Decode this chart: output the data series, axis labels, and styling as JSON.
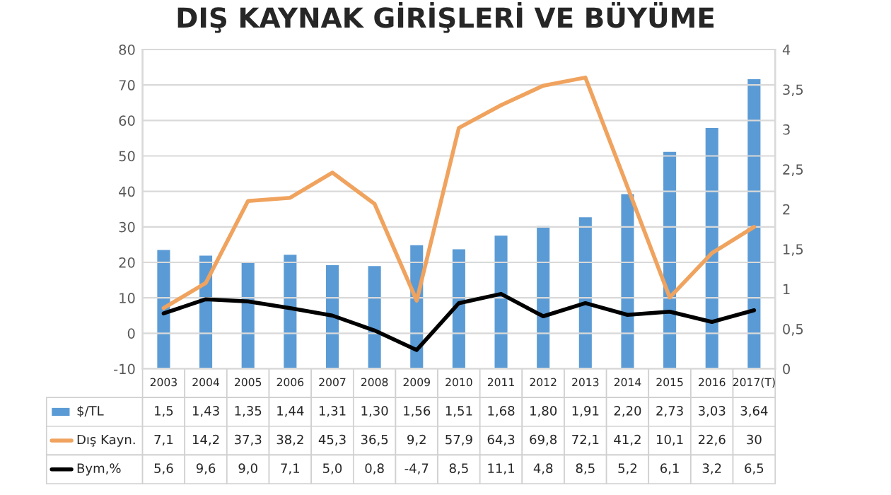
{
  "chart_data": {
    "type": "bar",
    "title": "DIŞ KAYNAK GİRİŞLERİ VE BÜYÜME",
    "categories": [
      "2003",
      "2004",
      "2005",
      "2006",
      "2007",
      "2008",
      "2009",
      "2010",
      "2011",
      "2012",
      "2013",
      "2014",
      "2015",
      "2016",
      "2017(T)"
    ],
    "series": [
      {
        "name": "$/TL",
        "axis": "y2",
        "color": "#5b9bd5",
        "values": [
          1.5,
          1.43,
          1.35,
          1.44,
          1.31,
          1.3,
          1.56,
          1.51,
          1.68,
          1.8,
          1.91,
          2.2,
          2.73,
          3.03,
          3.64
        ],
        "value_labels": [
          "1,5",
          "1,43",
          "1,35",
          "1,44",
          "1,31",
          "1,30",
          "1,56",
          "1,51",
          "1,68",
          "1,80",
          "1,91",
          "2,20",
          "2,73",
          "3,03",
          "3,64"
        ]
      },
      {
        "name": "Dış Kayn.",
        "type": "line",
        "color": "#f0a35e",
        "values": [
          7.1,
          14.2,
          37.3,
          38.2,
          45.3,
          36.5,
          9.2,
          57.9,
          64.3,
          69.8,
          72.1,
          41.2,
          10.1,
          22.6,
          30
        ],
        "value_labels": [
          "7,1",
          "14,2",
          "37,3",
          "38,2",
          "45,3",
          "36,5",
          "9,2",
          "57,9",
          "64,3",
          "69,8",
          "72,1",
          "41,2",
          "10,1",
          "22,6",
          "30"
        ]
      },
      {
        "name": "Bym,%",
        "type": "line",
        "color": "#000000",
        "values": [
          5.6,
          9.6,
          9.0,
          7.1,
          5.0,
          0.8,
          -4.7,
          8.5,
          11.1,
          4.8,
          8.5,
          5.2,
          6.1,
          3.2,
          6.5
        ],
        "value_labels": [
          "5,6",
          "9,6",
          "9,0",
          "7,1",
          "5,0",
          "0,8",
          "-4,7",
          "8,5",
          "11,1",
          "4,8",
          "8,5",
          "5,2",
          "6,1",
          "3,2",
          "6,5"
        ]
      }
    ],
    "ylim": [
      -10,
      80
    ],
    "yticks": [
      -10,
      0,
      10,
      20,
      30,
      40,
      50,
      60,
      70,
      80
    ],
    "y2lim": [
      0,
      4
    ],
    "y2ticks": [
      0,
      {
        "value": 0.5,
        "label": "0,5"
      },
      1,
      {
        "value": 1.5,
        "label": "1,5"
      },
      2,
      {
        "value": 2.5,
        "label": "2,5"
      },
      3,
      {
        "value": 3.5,
        "label": "3,5"
      },
      4
    ],
    "grid": "y",
    "legend": "bottom"
  }
}
